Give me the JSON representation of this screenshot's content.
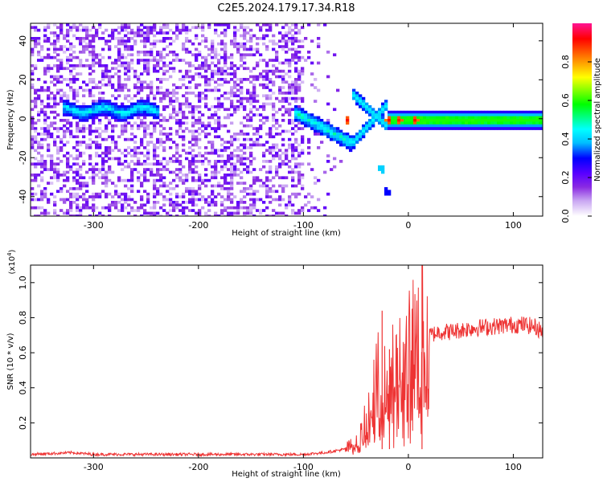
{
  "figure": {
    "title": "C2E5.2024.179.17.34.R18"
  },
  "chart_data": [
    {
      "type": "heatmap",
      "xlabel": "Height of straight line (km)",
      "ylabel": "Frequency (Hz)",
      "xlim": [
        -360,
        128
      ],
      "ylim": [
        -50,
        49
      ],
      "x_ticks": [
        -300,
        -200,
        -100,
        0,
        100
      ],
      "x_tick_labels": [
        "-300",
        "-200",
        "-100",
        "0",
        "100"
      ],
      "y_ticks": [
        -40,
        -20,
        0,
        20,
        40
      ],
      "y_tick_labels": [
        "-40",
        "-20",
        "0",
        "20",
        "40"
      ],
      "colorbar": {
        "label": "Normalized spectral amplitude",
        "range": [
          0.0,
          1.0
        ],
        "ticks": [
          0.0,
          0.2,
          0.4,
          0.6,
          0.8
        ],
        "tick_labels": [
          "0.0",
          "0.2",
          "0.4",
          "0.6",
          "0.8"
        ],
        "colormap": [
          "#ffffff",
          "#c9a6f2",
          "#8a2be2",
          "#5a00ff",
          "#0000ff",
          "#00bfff",
          "#00ffff",
          "#00ff00",
          "#ffff00",
          "#ff8000",
          "#ff0000",
          "#ff1493"
        ]
      },
      "features": {
        "noise_region_x": [
          -360,
          -100
        ],
        "noise_fade_x": [
          -100,
          -60
        ],
        "ridge_left_x": [
          -330,
          -240
        ],
        "ridge_left_freq": 5,
        "ridge_descend_x": [
          -110,
          -55
        ],
        "ridge_descend_freq": [
          4,
          -12
        ],
        "ridge_steady_x": [
          -20,
          128
        ],
        "ridge_steady_freq": 0,
        "blobs": [
          {
            "x": -27,
            "freq": -25,
            "amp": 0.4
          },
          {
            "x": -22,
            "freq": -37,
            "amp": 0.3
          }
        ],
        "hotspots_x": [
          -60,
          -20,
          -10,
          5
        ]
      }
    },
    {
      "type": "line",
      "xlabel": "Height of straight line (km)",
      "ylabel": "SNR (10 * v/v)",
      "y_exponent_label": "(x10",
      "y_exponent_power": "4",
      "y_exponent_close": ")",
      "xlim": [
        -360,
        128
      ],
      "ylim": [
        0,
        1.1
      ],
      "x_ticks": [
        -300,
        -200,
        -100,
        0,
        100
      ],
      "x_tick_labels": [
        "-300",
        "-200",
        "-100",
        "0",
        "100"
      ],
      "y_ticks": [
        0.2,
        0.4,
        0.6,
        0.8,
        1.0
      ],
      "y_tick_labels": [
        "0.2",
        "0.4",
        "0.6",
        "0.8",
        "1.0"
      ],
      "series": [
        {
          "color": "#ee3333",
          "x": [
            -360,
            -340,
            -320,
            -300,
            -280,
            -260,
            -240,
            -220,
            -200,
            -180,
            -160,
            -140,
            -120,
            -100,
            -80,
            -60,
            -50,
            -45,
            -40,
            -35,
            -30,
            -25,
            -20,
            -15,
            -10,
            -5,
            0,
            5,
            10,
            15,
            20,
            30,
            40,
            60,
            80,
            100,
            110,
            120,
            128
          ],
          "values": [
            0.02,
            0.025,
            0.03,
            0.02,
            0.02,
            0.02,
            0.02,
            0.02,
            0.02,
            0.02,
            0.02,
            0.02,
            0.02,
            0.02,
            0.03,
            0.05,
            0.08,
            0.12,
            0.2,
            0.3,
            0.45,
            0.35,
            0.4,
            0.45,
            0.48,
            0.5,
            0.55,
            0.6,
            0.65,
            0.68,
            0.7,
            0.72,
            0.72,
            0.74,
            0.75,
            0.76,
            0.76,
            0.75,
            0.72
          ]
        }
      ],
      "spikes": [
        {
          "x": -25,
          "value": 0.84
        },
        {
          "x": -18,
          "value": 0.62
        },
        {
          "x": 13,
          "value": 1.1
        }
      ]
    }
  ]
}
